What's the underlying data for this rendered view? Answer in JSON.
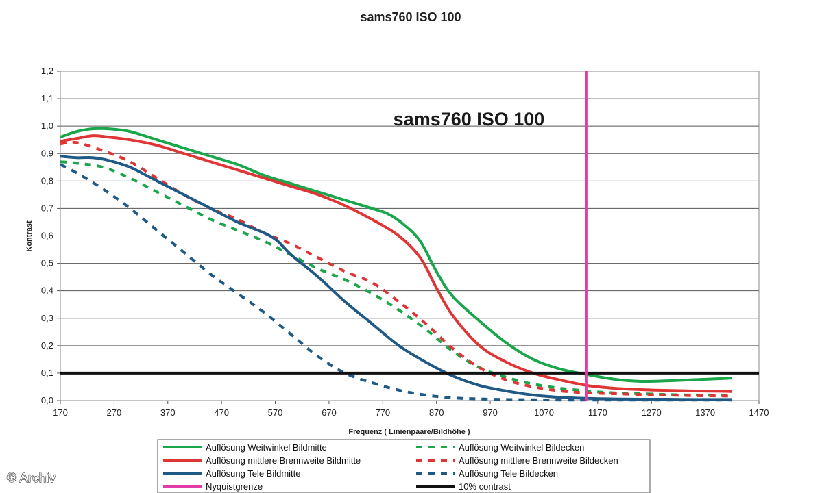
{
  "copyright": "© Archiv",
  "chart_data": {
    "type": "line",
    "title": "sams760 ISO 100",
    "inner_title": "sams760 ISO 100",
    "xlabel": "Frequenz ( Linienpaare/Bildhöhe )",
    "ylabel": "Kontrast",
    "xlim": [
      170,
      1470
    ],
    "ylim": [
      0,
      1.2
    ],
    "grid": "horizontal",
    "legend_position": "bottom",
    "xticks": [
      "170",
      "270",
      "370",
      "470",
      "570",
      "670",
      "770",
      "870",
      "970",
      "1070",
      "1170",
      "1270",
      "1370",
      "1470"
    ],
    "yticks": [
      "0,0",
      "0,1",
      "0,2",
      "0,3",
      "0,4",
      "0,5",
      "0,6",
      "0,7",
      "0,8",
      "0,9",
      "1,0",
      "1,1",
      "1,2"
    ],
    "series": [
      {
        "name": "Auflösung Weitwinkel Bildmitte",
        "color": "#1aa64a",
        "style": "solid",
        "x": [
          170,
          200,
          230,
          260,
          300,
          350,
          400,
          450,
          500,
          550,
          600,
          650,
          700,
          750,
          780,
          810,
          840,
          870,
          900,
          950,
          1000,
          1050,
          1100,
          1150,
          1200,
          1250,
          1300,
          1350,
          1400,
          1420
        ],
        "y": [
          0.96,
          0.98,
          0.99,
          0.99,
          0.98,
          0.95,
          0.92,
          0.89,
          0.86,
          0.82,
          0.79,
          0.76,
          0.73,
          0.7,
          0.68,
          0.64,
          0.58,
          0.47,
          0.38,
          0.29,
          0.21,
          0.15,
          0.115,
          0.095,
          0.078,
          0.07,
          0.072,
          0.076,
          0.08,
          0.082
        ]
      },
      {
        "name": "Auflösung mittlere Brennweite Bildmitte",
        "color": "#e03535",
        "style": "solid",
        "x": [
          170,
          200,
          230,
          260,
          300,
          350,
          400,
          450,
          500,
          550,
          600,
          650,
          700,
          750,
          800,
          840,
          870,
          900,
          950,
          1000,
          1050,
          1100,
          1150,
          1200,
          1250,
          1300,
          1350,
          1400,
          1420
        ],
        "y": [
          0.945,
          0.955,
          0.965,
          0.96,
          0.95,
          0.93,
          0.9,
          0.87,
          0.84,
          0.81,
          0.78,
          0.75,
          0.71,
          0.66,
          0.6,
          0.52,
          0.41,
          0.31,
          0.2,
          0.14,
          0.1,
          0.075,
          0.055,
          0.045,
          0.04,
          0.037,
          0.035,
          0.034,
          0.033
        ]
      },
      {
        "name": "Auflösung Tele Bildmitte",
        "color": "#1f5a87",
        "style": "solid",
        "x": [
          170,
          200,
          230,
          260,
          300,
          350,
          400,
          450,
          500,
          550,
          575,
          600,
          650,
          700,
          750,
          800,
          850,
          900,
          950,
          1000,
          1050,
          1100,
          1150,
          1200,
          1250,
          1300,
          1350,
          1400,
          1420
        ],
        "y": [
          0.89,
          0.885,
          0.885,
          0.875,
          0.85,
          0.8,
          0.75,
          0.7,
          0.65,
          0.61,
          0.58,
          0.53,
          0.45,
          0.36,
          0.28,
          0.2,
          0.14,
          0.09,
          0.055,
          0.035,
          0.02,
          0.012,
          0.008,
          0.006,
          0.005,
          0.005,
          0.004,
          0.004,
          0.004
        ]
      },
      {
        "name": "Nyquistgrenze",
        "color": "#e23ca8",
        "style": "solid",
        "x": [
          1149,
          1149
        ],
        "y": [
          0,
          1.2
        ]
      },
      {
        "name": "Auflösung Weitwinkel Bildecken",
        "color": "#1aa64a",
        "style": "dashed",
        "x": [
          170,
          200,
          250,
          300,
          350,
          400,
          450,
          500,
          550,
          600,
          650,
          700,
          750,
          800,
          850,
          900,
          950,
          1000,
          1050,
          1100,
          1150,
          1200,
          1250,
          1300,
          1350,
          1400,
          1420
        ],
        "y": [
          0.87,
          0.865,
          0.85,
          0.81,
          0.76,
          0.71,
          0.66,
          0.62,
          0.58,
          0.53,
          0.48,
          0.44,
          0.39,
          0.33,
          0.26,
          0.18,
          0.12,
          0.085,
          0.06,
          0.045,
          0.035,
          0.028,
          0.025,
          0.022,
          0.02,
          0.019,
          0.018
        ]
      },
      {
        "name": "Auflösung mittlere Brennweite Bildecken",
        "color": "#e03535",
        "style": "dashed",
        "x": [
          170,
          200,
          250,
          300,
          350,
          400,
          450,
          500,
          550,
          600,
          650,
          700,
          750,
          800,
          850,
          900,
          950,
          1000,
          1050,
          1100,
          1150,
          1200,
          1250,
          1300,
          1350,
          1400,
          1420
        ],
        "y": [
          0.935,
          0.94,
          0.91,
          0.87,
          0.81,
          0.75,
          0.7,
          0.66,
          0.61,
          0.57,
          0.52,
          0.47,
          0.43,
          0.36,
          0.28,
          0.19,
          0.12,
          0.075,
          0.05,
          0.035,
          0.028,
          0.025,
          0.022,
          0.02,
          0.018,
          0.017,
          0.016
        ]
      },
      {
        "name": "Auflösung Tele Bildecken",
        "color": "#1f5a87",
        "style": "dashed",
        "x": [
          170,
          200,
          250,
          300,
          350,
          400,
          450,
          500,
          550,
          600,
          650,
          700,
          750,
          800,
          850,
          900,
          950,
          1000,
          1050,
          1100,
          1150,
          1200,
          1250,
          1300,
          1350,
          1400,
          1420
        ],
        "y": [
          0.86,
          0.83,
          0.77,
          0.7,
          0.62,
          0.54,
          0.46,
          0.39,
          0.32,
          0.24,
          0.16,
          0.1,
          0.065,
          0.038,
          0.02,
          0.01,
          0.006,
          0.004,
          0.003,
          0.002,
          0.002,
          0.002,
          0.002,
          0.002,
          0.002,
          0.002,
          0.002
        ]
      },
      {
        "name": "10% contrast",
        "color": "#111111",
        "style": "solid",
        "x": [
          170,
          1470
        ],
        "y": [
          0.1,
          0.1
        ]
      }
    ]
  }
}
